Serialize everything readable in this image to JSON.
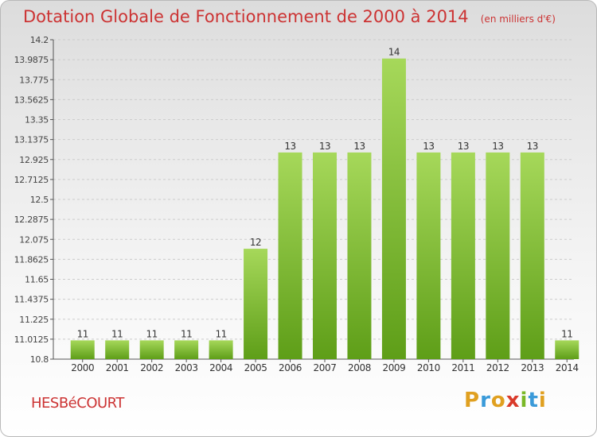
{
  "header": {
    "title": "Dotation Globale de Fonctionnement de 2000 à 2014",
    "unit": "(en milliers d'€)"
  },
  "footer": {
    "commune": "HESBéCOURT",
    "brand_letters": [
      "P",
      "r",
      "o",
      "x",
      "i",
      "t",
      "i"
    ],
    "brand_colors": [
      "#e0a020",
      "#3a9ad9",
      "#e0a020",
      "#d93a2a",
      "#7ab828",
      "#3a9ad9",
      "#e0a020"
    ]
  },
  "colors": {
    "title": "#cc3333",
    "bar_light": "#a6d85a",
    "bar_dark": "#5e9e18",
    "grid": "#cccccc"
  },
  "chart_data": {
    "type": "bar",
    "categories": [
      "2000",
      "2001",
      "2002",
      "2003",
      "2004",
      "2005",
      "2006",
      "2007",
      "2008",
      "2009",
      "2010",
      "2011",
      "2012",
      "2013",
      "2014"
    ],
    "values": [
      11,
      11,
      11,
      11,
      11,
      12,
      13,
      13,
      13,
      14,
      13,
      13,
      13,
      13,
      11
    ],
    "value_labels": [
      "11",
      "11",
      "11",
      "11",
      "11",
      "12",
      "13",
      "13",
      "13",
      "14",
      "13",
      "13",
      "13",
      "13",
      "11"
    ],
    "plot_values": [
      11,
      11,
      11,
      11,
      11,
      11.975,
      13,
      13,
      13,
      14,
      13,
      13,
      13,
      13,
      11
    ],
    "yticks": [
      10.8,
      11.0125,
      11.225,
      11.4375,
      11.65,
      11.8625,
      12.075,
      12.2875,
      12.5,
      12.7125,
      12.925,
      13.1375,
      13.35,
      13.5625,
      13.775,
      13.9875,
      14.2
    ],
    "ytick_labels": [
      "10.8",
      "11.0125",
      "11.225",
      "11.4375",
      "11.65",
      "11.8625",
      "12.075",
      "12.2875",
      "12.5",
      "12.7125",
      "12.925",
      "13.1375",
      "13.35",
      "13.5625",
      "13.775",
      "13.9875",
      "14.2"
    ],
    "ylim": [
      10.8,
      14.2
    ],
    "grid": true,
    "title": "Dotation Globale de Fonctionnement de 2000 à 2014",
    "xlabel": "",
    "ylabel": ""
  }
}
